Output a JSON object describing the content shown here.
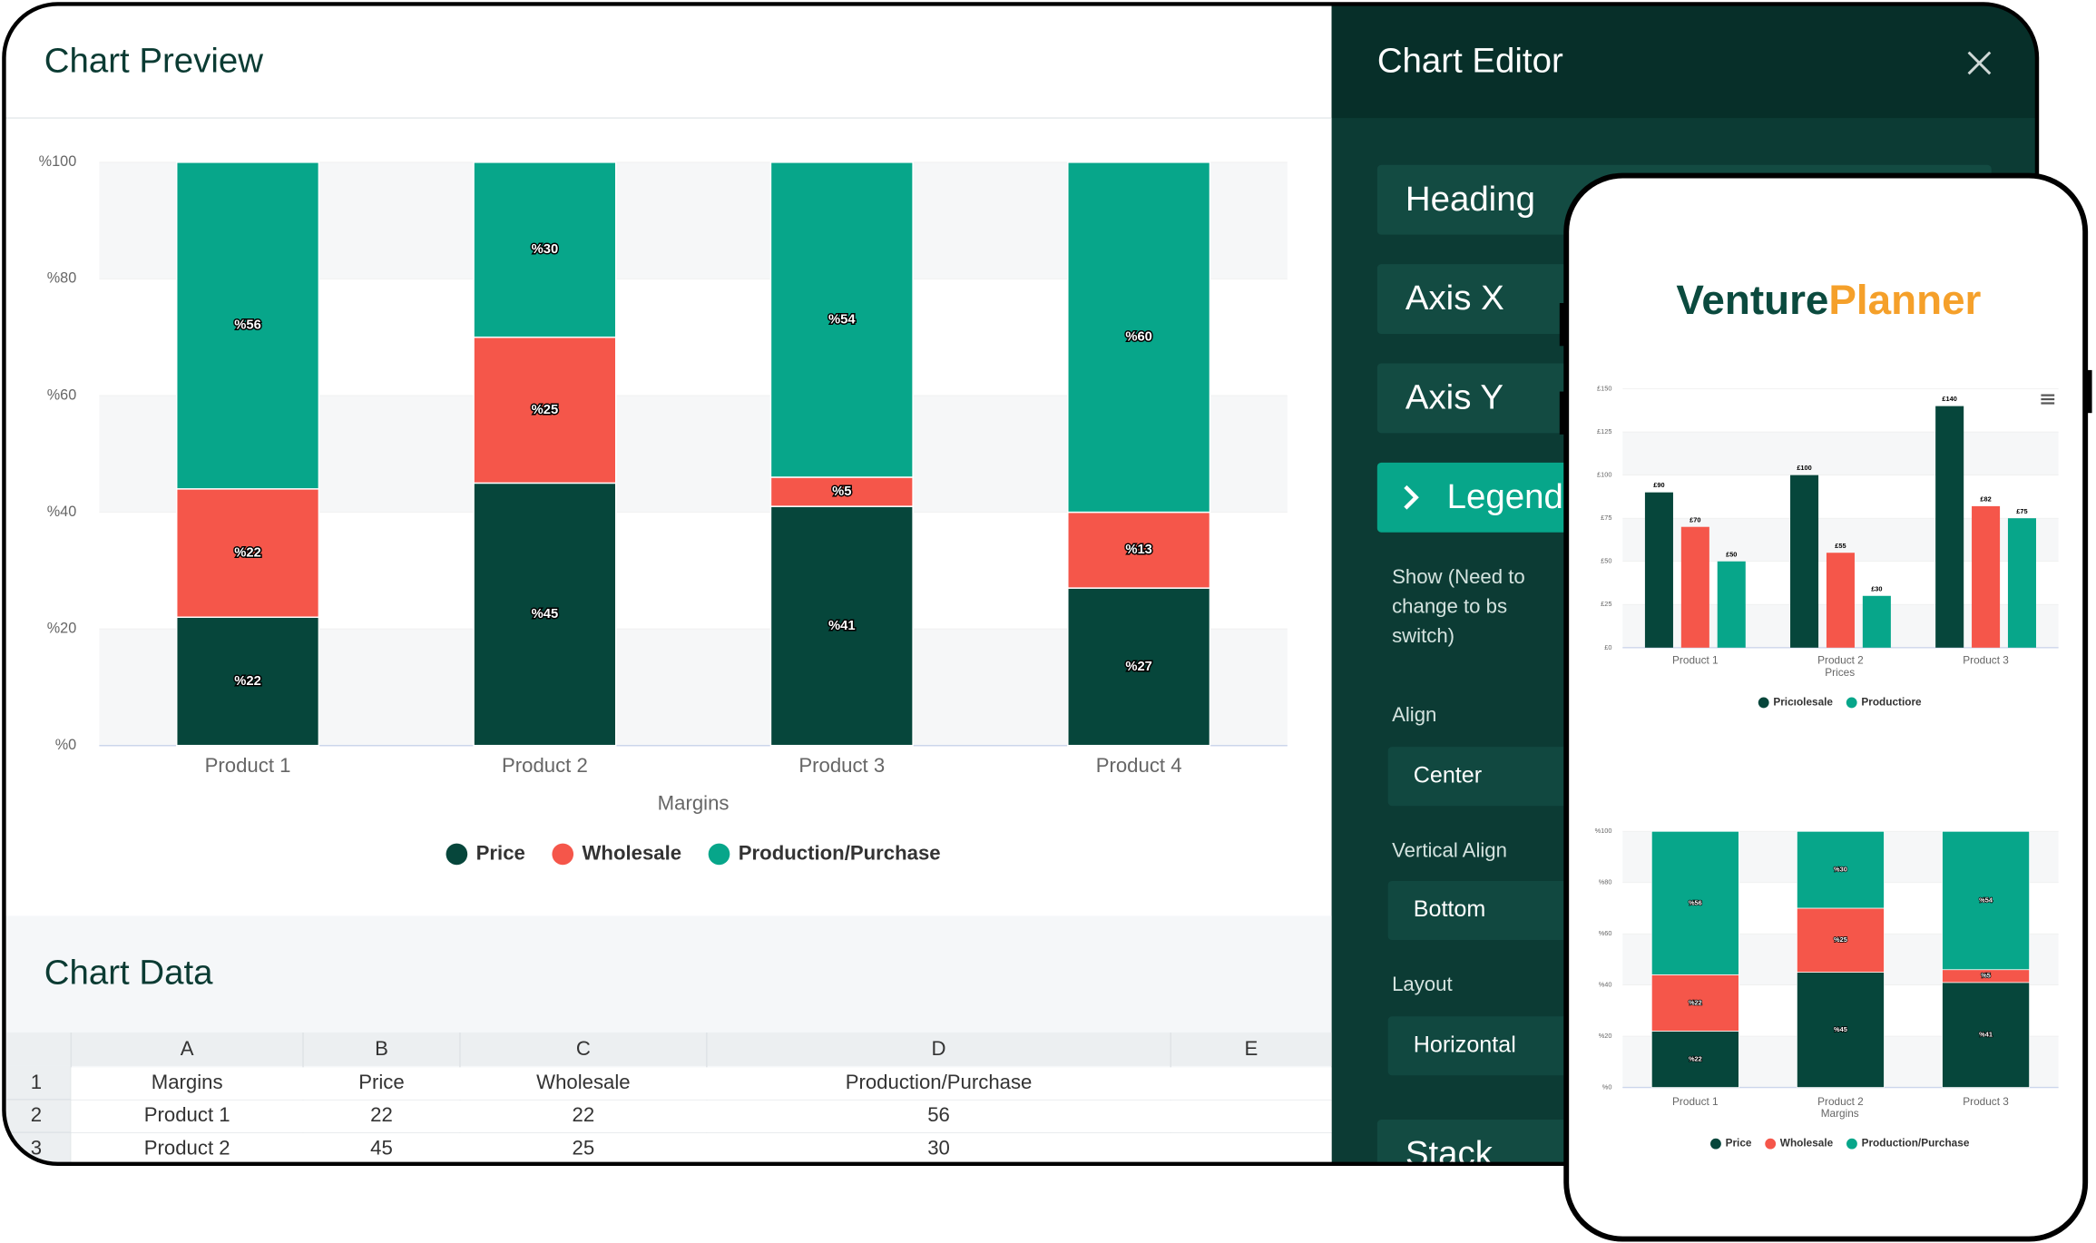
{
  "preview_title": "Chart Preview",
  "chart_data": [
    {
      "type": "stacked_bar",
      "categories": [
        "Product 1",
        "Product 2",
        "Product 3",
        "Product 4"
      ],
      "x_label": "Margins",
      "series": [
        {
          "name": "Price",
          "color": "#06463b",
          "values": [
            22,
            45,
            41,
            27
          ],
          "value_labels": [
            "%22",
            "%45",
            "%41",
            "%27"
          ]
        },
        {
          "name": "Wholesale",
          "color": "#f5564a",
          "values": [
            22,
            25,
            5,
            13
          ],
          "value_labels": [
            "%22",
            "%25",
            "%5",
            "%13"
          ]
        },
        {
          "name": "Production/Purchase",
          "color": "#07a68a",
          "values": [
            56,
            30,
            54,
            60
          ],
          "value_labels": [
            "%56",
            "%30",
            "%54",
            "%60"
          ]
        }
      ],
      "ylim": [
        0,
        100
      ],
      "yticks": [
        {
          "value": 0,
          "label": "%0"
        },
        {
          "value": 20,
          "label": "%20"
        },
        {
          "value": 40,
          "label": "%40"
        },
        {
          "value": 60,
          "label": "%60"
        },
        {
          "value": 80,
          "label": "%80"
        },
        {
          "value": 100,
          "label": "%100"
        }
      ],
      "grid": true
    },
    {
      "type": "bar",
      "categories": [
        "Product 1",
        "Product 2",
        "Product 3"
      ],
      "x_label": "Prices",
      "series": [
        {
          "color": "#06463b",
          "values": [
            90,
            100,
            140
          ],
          "value_labels": [
            "£90",
            "£100",
            "£140"
          ]
        },
        {
          "color": "#f5564a",
          "values": [
            70,
            55,
            82
          ],
          "value_labels": [
            "£70",
            "£55",
            "£82"
          ]
        },
        {
          "color": "#07a68a",
          "values": [
            50,
            30,
            75
          ],
          "value_labels": [
            "£50",
            "£30",
            "£75"
          ]
        }
      ],
      "legend": [
        {
          "label": "Pricıolesale",
          "color": "#06463b"
        },
        {
          "label": "Productiore",
          "color": "#07a68a"
        }
      ],
      "ylim": [
        0,
        150
      ],
      "yticks": [
        {
          "value": 0,
          "label": "£0"
        },
        {
          "value": 25,
          "label": "£25"
        },
        {
          "value": 50,
          "label": "£50"
        },
        {
          "value": 75,
          "label": "£75"
        },
        {
          "value": 100,
          "label": "£100"
        },
        {
          "value": 125,
          "label": "£125"
        },
        {
          "value": 150,
          "label": "£150"
        }
      ],
      "grid": true
    },
    {
      "type": "stacked_bar",
      "categories": [
        "Product 1",
        "Product 2",
        "Product 3"
      ],
      "x_label": "Margins",
      "series": [
        {
          "name": "Price",
          "color": "#06463b",
          "values": [
            22,
            45,
            41
          ],
          "value_labels": [
            "%22",
            "%45",
            "%41"
          ]
        },
        {
          "name": "Wholesale",
          "color": "#f5564a",
          "values": [
            22,
            25,
            5
          ],
          "value_labels": [
            "%22",
            "%25",
            "%5"
          ]
        },
        {
          "name": "Production/Purchase",
          "color": "#07a68a",
          "values": [
            56,
            30,
            54
          ],
          "value_labels": [
            "%56",
            "%30",
            "%54"
          ]
        }
      ],
      "ylim": [
        0,
        100
      ],
      "yticks": [
        {
          "value": 0,
          "label": "%0"
        },
        {
          "value": 20,
          "label": "%20"
        },
        {
          "value": 40,
          "label": "%40"
        },
        {
          "value": 60,
          "label": "%60"
        },
        {
          "value": 80,
          "label": "%80"
        },
        {
          "value": 100,
          "label": "%100"
        }
      ],
      "grid": true
    }
  ],
  "data_table": {
    "title": "Chart Data",
    "columns": [
      "A",
      "B",
      "C",
      "D",
      "E"
    ],
    "row_numbers": [
      1,
      2,
      3
    ],
    "rows": [
      [
        "Margins",
        "Price",
        "Wholesale",
        "Production/Purchase"
      ],
      [
        "Product 1",
        22,
        22,
        56
      ],
      [
        "Product 2",
        45,
        25,
        30
      ]
    ]
  },
  "editor": {
    "title": "Chart Editor",
    "sections": [
      "Heading",
      "Axis X",
      "Axis Y",
      "Legend",
      "Stack"
    ],
    "show_option": "Show (Need to change to bs switch)",
    "fields": [
      {
        "label": "Align",
        "value": "Center"
      },
      {
        "label": "Vertical Align",
        "value": "Bottom"
      },
      {
        "label": "Layout",
        "value": "Horizontal"
      }
    ]
  },
  "logo": {
    "part1": "Venture",
    "part2": "Planner"
  }
}
